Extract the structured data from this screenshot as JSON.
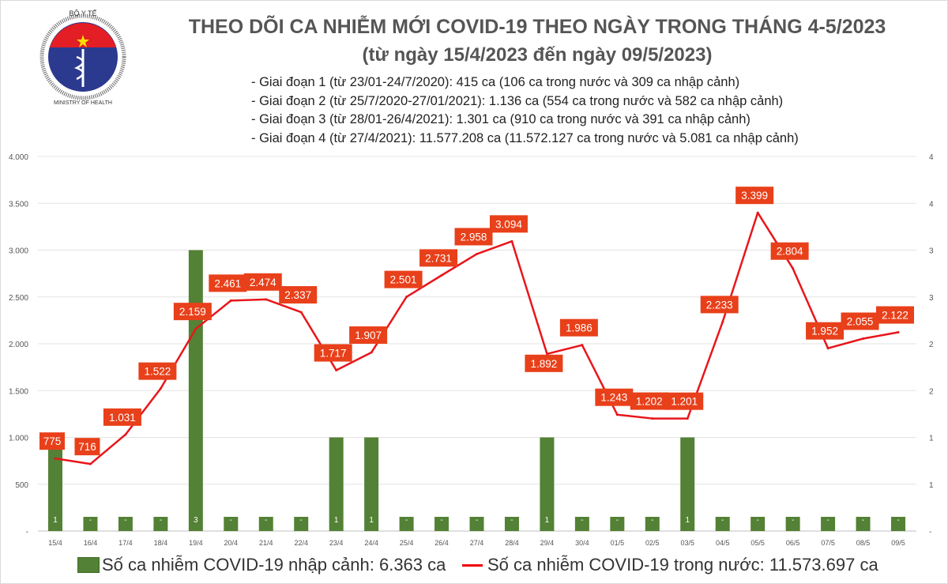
{
  "header": {
    "title": "THEO DÕI CA NHIỄM MỚI COVID-19 THEO NGÀY TRONG THÁNG 4-5/2023",
    "subtitle": "(từ ngày 15/4/2023 đến ngày 09/5/2023)",
    "stats": [
      "- Giai đoạn 1 (từ 23/01-24/7/2020): 415 ca (106 ca trong nước và 309 ca nhập cảnh)",
      "- Giai đoạn 2 (từ 25/7/2020-27/01/2021): 1.136 ca (554 ca trong nước và 582 ca nhập cảnh)",
      "- Giai đoạn 3 (từ 28/01-26/4/2021): 1.301 ca (910 ca trong nước và 391 ca nhập cảnh)",
      "- Giai đoạn 4 (từ 27/4/2021): 11.577.208 ca (11.572.127 ca trong nước và 5.081 ca nhập cảnh)"
    ],
    "logo": {
      "top_text": "BỘ Y TẾ",
      "bottom_text": "MINISTRY OF HEALTH"
    }
  },
  "chart_data": {
    "type": "bar+line",
    "categories": [
      "15/4",
      "16/4",
      "17/4",
      "18/4",
      "19/4",
      "20/4",
      "21/4",
      "22/4",
      "23/4",
      "24/4",
      "25/4",
      "26/4",
      "27/4",
      "28/4",
      "29/4",
      "30/4",
      "01/5",
      "02/5",
      "03/5",
      "04/5",
      "05/5",
      "06/5",
      "07/5",
      "08/5",
      "09/5"
    ],
    "series": [
      {
        "name": "Số ca nhiễm COVID-19 nhập cảnh: 6.363 ca",
        "type": "bar",
        "axis": "right",
        "color": "#538135",
        "values": [
          1,
          0,
          0,
          0,
          3,
          0,
          0,
          0,
          1,
          1,
          0,
          0,
          0,
          0,
          1,
          0,
          0,
          0,
          1,
          0,
          0,
          0,
          0,
          0,
          0
        ]
      },
      {
        "name": "Số ca nhiễm COVID-19 trong nước: 11.573.697 ca",
        "type": "line",
        "axis": "left",
        "color": "#e8161b",
        "values": [
          775,
          716,
          1031,
          1522,
          2159,
          2461,
          2474,
          2337,
          1717,
          1907,
          2501,
          2731,
          2958,
          3094,
          1892,
          1986,
          1243,
          1202,
          1201,
          2233,
          3399,
          2804,
          1952,
          2055,
          2122
        ]
      }
    ],
    "left_axis": {
      "ylim": [
        0,
        4000
      ],
      "ticks": [
        "-",
        "500",
        "1.000",
        "1.500",
        "2.000",
        "2.500",
        "3.000",
        "3.500",
        "4.000"
      ]
    },
    "right_axis": {
      "ylim": [
        0,
        4
      ],
      "ticks": [
        "-",
        "1",
        "1",
        "2",
        "2",
        "3",
        "3",
        "4",
        "4"
      ]
    },
    "grid": true,
    "legend": "bottom"
  }
}
